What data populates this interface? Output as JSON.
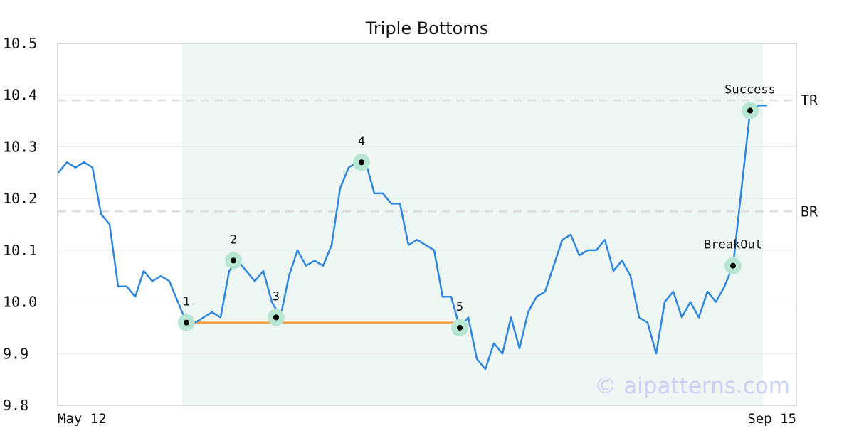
{
  "chart_data": {
    "type": "line",
    "title": "Triple Bottoms",
    "xlabel": "",
    "ylabel": "",
    "ylim": [
      9.8,
      10.5
    ],
    "yticks": [
      "9.8",
      "9.9",
      "10.0",
      "10.1",
      "10.2",
      "10.3",
      "10.4",
      "10.5"
    ],
    "x_tick_labels": {
      "start": "May 12",
      "end": "Sep 15"
    },
    "grid": "horizontal",
    "colors": {
      "line": "#2e86de",
      "support": "#f39c3c",
      "pattern_band": "#eef7f3",
      "marker_halo": "#b7e6d2",
      "marker_dot": "#000000",
      "reference": "#dddddd",
      "watermark": "#cdd0f5"
    },
    "series": [
      {
        "values": [
          10.25,
          10.27,
          10.26,
          10.27,
          10.26,
          10.17,
          10.15,
          10.03,
          10.03,
          10.01,
          10.06,
          10.04,
          10.05,
          10.04,
          10.0,
          9.96,
          9.96,
          9.97,
          9.98,
          9.97,
          10.06,
          10.08,
          10.06,
          10.04,
          10.06,
          10.0,
          9.97,
          10.05,
          10.1,
          10.07,
          10.08,
          10.07,
          10.11,
          10.22,
          10.26,
          10.27,
          10.27,
          10.21,
          10.21,
          10.19,
          10.19,
          10.11,
          10.12,
          10.11,
          10.1,
          10.01,
          10.01,
          9.95,
          9.97,
          9.89,
          9.87,
          9.92,
          9.9,
          9.97,
          9.91,
          9.98,
          10.01,
          10.02,
          10.07,
          10.12,
          10.13,
          10.09,
          10.1,
          10.1,
          10.12,
          10.06,
          10.08,
          10.05,
          9.97,
          9.96,
          9.9,
          10.0,
          10.02,
          9.97,
          10.0,
          9.97,
          10.02,
          10.0,
          10.03,
          10.07,
          10.22,
          10.37,
          10.38,
          10.38
        ]
      }
    ],
    "pattern_band": {
      "start_index": 14,
      "end_index": 82
    },
    "support_line": {
      "value": 9.96,
      "start_index": 15,
      "end_index": 47
    },
    "reference_lines": [
      {
        "label": "TR",
        "value": 10.39
      },
      {
        "label": "BR",
        "value": 10.175
      }
    ],
    "marked_points": [
      {
        "label": "1",
        "index": 15,
        "value": 9.96
      },
      {
        "label": "2",
        "index": 20.5,
        "value": 10.08
      },
      {
        "label": "3",
        "index": 25.5,
        "value": 9.97
      },
      {
        "label": "4",
        "index": 35.5,
        "value": 10.27
      },
      {
        "label": "5",
        "index": 47,
        "value": 9.95
      },
      {
        "label": "BreakOut",
        "index": 79,
        "value": 10.07
      },
      {
        "label": "Success",
        "index": 81,
        "value": 10.37
      }
    ],
    "watermark": "© aipatterns.com"
  }
}
